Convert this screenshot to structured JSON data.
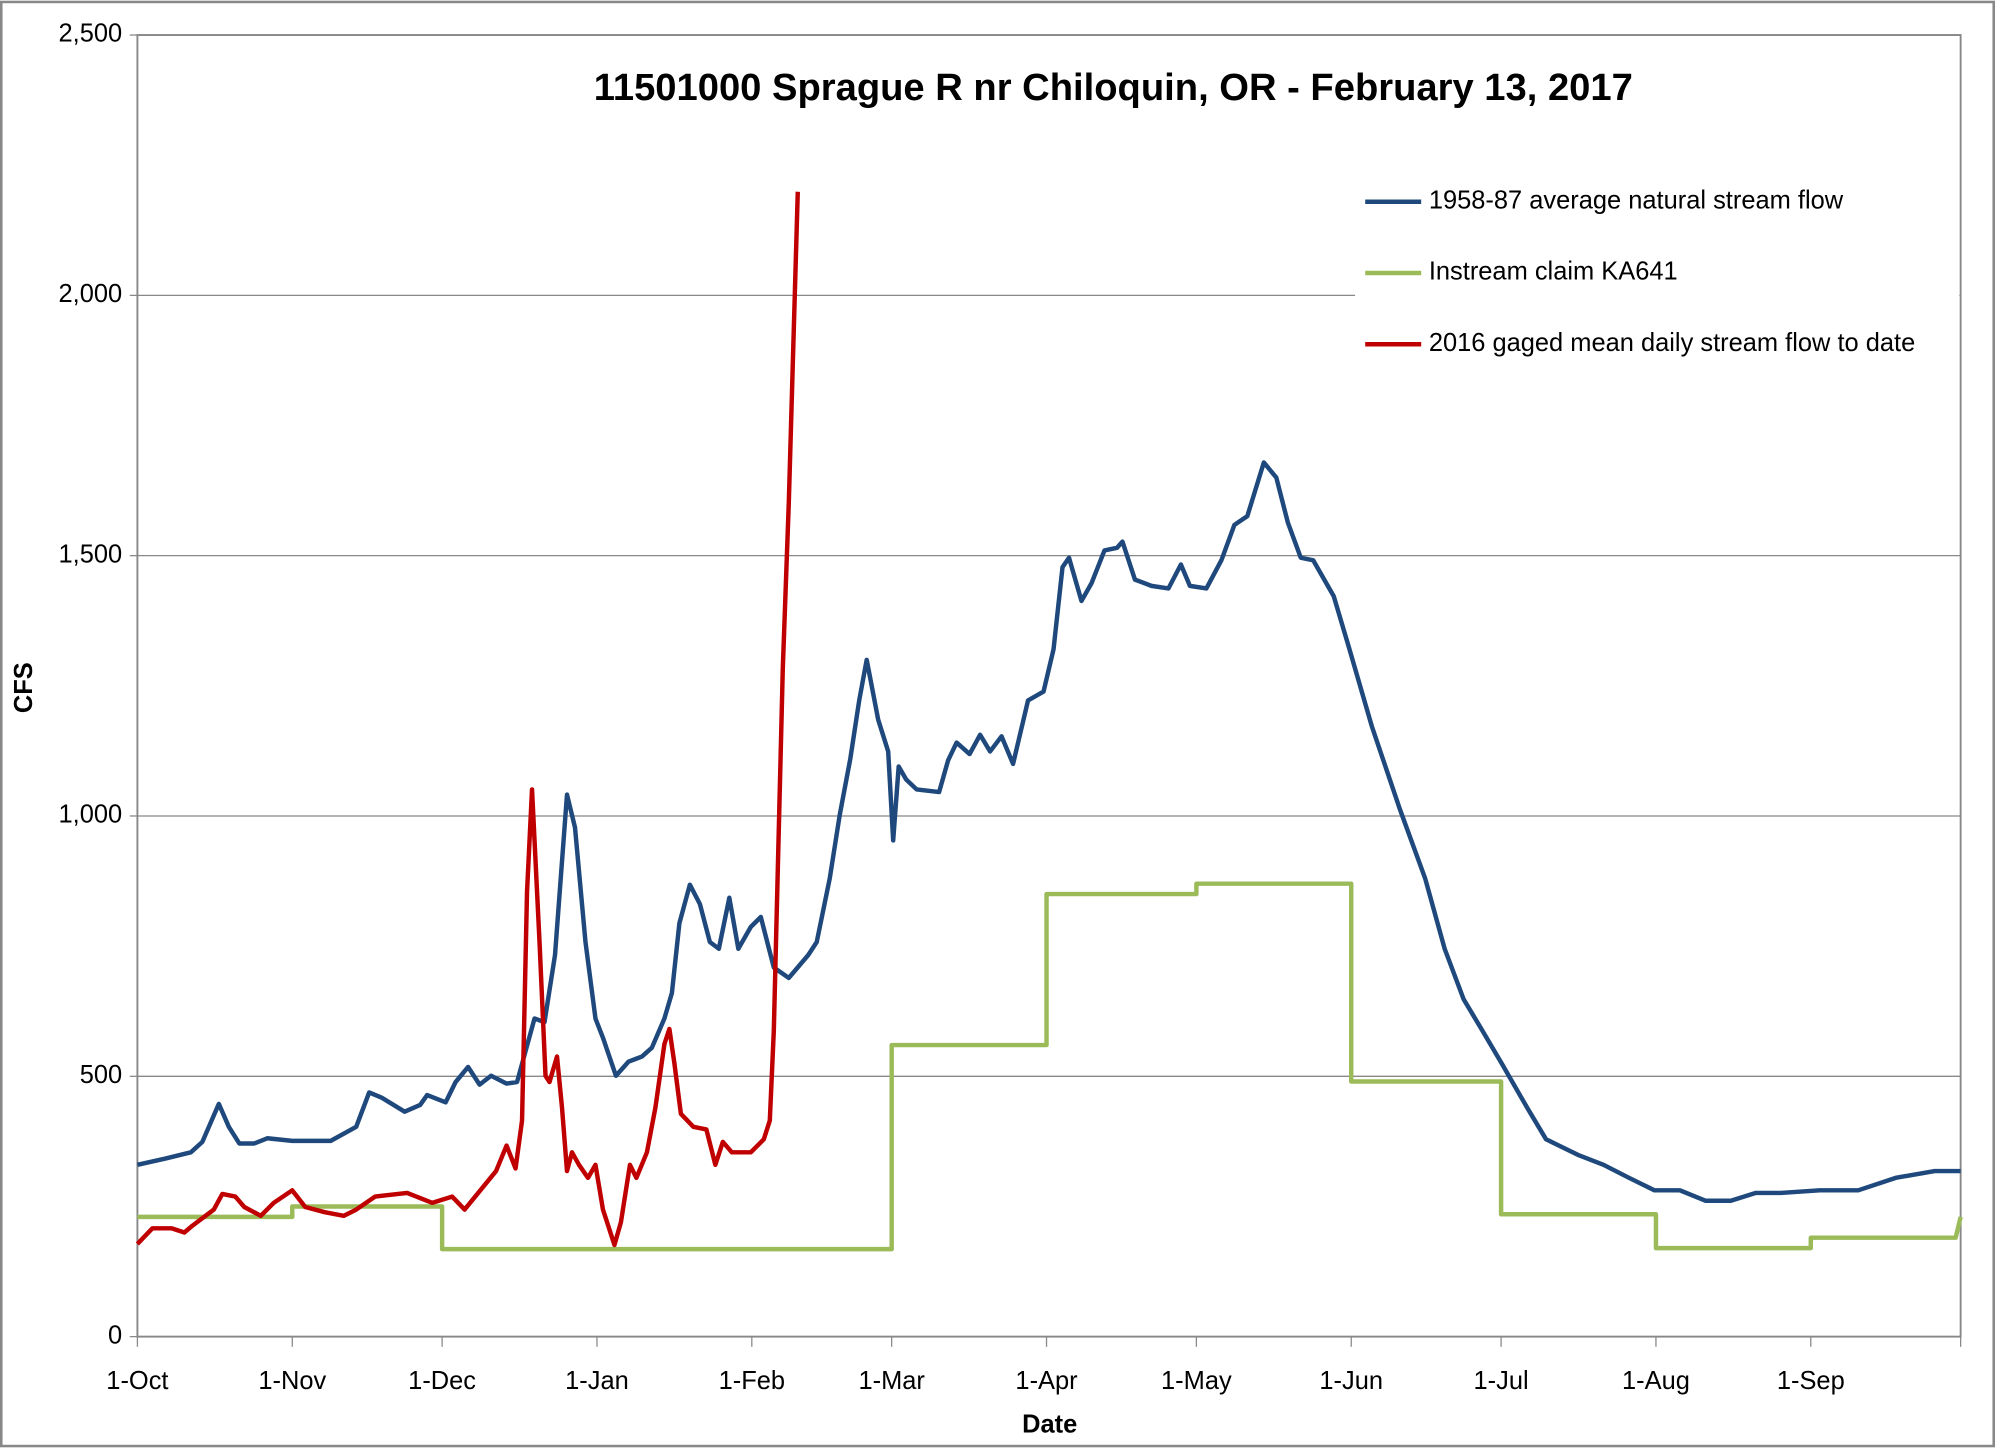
{
  "chart_data": {
    "type": "line",
    "title": "11501000 Sprague R nr Chiloquin, OR   -  February 13, 2017",
    "x_label": "Date",
    "y_label": "CFS",
    "xlim": [
      0,
      365
    ],
    "ylim": [
      0,
      2500
    ],
    "xticks": [
      {
        "value": 0,
        "label": "1-Oct"
      },
      {
        "value": 31,
        "label": "1-Nov"
      },
      {
        "value": 61,
        "label": "1-Dec"
      },
      {
        "value": 92,
        "label": "1-Jan"
      },
      {
        "value": 123,
        "label": "1-Feb"
      },
      {
        "value": 151,
        "label": "1-Mar"
      },
      {
        "value": 182,
        "label": "1-Apr"
      },
      {
        "value": 212,
        "label": "1-May"
      },
      {
        "value": 243,
        "label": "1-Jun"
      },
      {
        "value": 273,
        "label": "1-Jul"
      },
      {
        "value": 304,
        "label": "1-Aug"
      },
      {
        "value": 335,
        "label": "1-Sep"
      }
    ],
    "yticks": [
      0,
      {
        "value": 500,
        "label": "500"
      },
      {
        "value": 1000,
        "label": "1,000"
      },
      {
        "value": 1500,
        "label": "1,500"
      },
      {
        "value": 2000,
        "label": "2,000"
      },
      {
        "value": 2500,
        "label": "2,500"
      }
    ],
    "grid": true,
    "legend": "upper right",
    "series": [
      {
        "name": "1958-87 average natural stream flow",
        "color": "#1f497d",
        "x": [
          0,
          5.6,
          10.7,
          13,
          16.3,
          18.3,
          20.4,
          23.4,
          26,
          31,
          38.7,
          43.8,
          46.4,
          48.9,
          53.5,
          56.6,
          58,
          61.7,
          63.7,
          66.2,
          68.5,
          70.8,
          73.9,
          76,
          79.5,
          81.5,
          83.6,
          86,
          87.6,
          89.7,
          91.7,
          93.2,
          95.8,
          98.3,
          101,
          103,
          105.5,
          107,
          108.5,
          110.6,
          112.6,
          114.6,
          116.4,
          118.5,
          120.3,
          122.8,
          124.8,
          127.4,
          130.4,
          134.3,
          136,
          138.6,
          140.6,
          142.7,
          144.5,
          146,
          148.3,
          150.3,
          151.3,
          152.4,
          153.9,
          156,
          160.5,
          162.3,
          164,
          166.6,
          168.7,
          170.7,
          173,
          175.3,
          178.3,
          181.4,
          183.4,
          185.2,
          186.5,
          189,
          191,
          193.6,
          196.1,
          197.2,
          199.7,
          203,
          206.4,
          208.9,
          210.7,
          214,
          217,
          219.6,
          222.2,
          225.5,
          228,
          230.3,
          232.9,
          235.4,
          239.5,
          242.5,
          247.1,
          252.7,
          257.8,
          261.7,
          265.5,
          269.3,
          273.1,
          278.2,
          282,
          288.4,
          293.5,
          298.6,
          303.7,
          308.8,
          313.9,
          319,
          324,
          329,
          336.8,
          344.5,
          352,
          359.8,
          365
        ],
        "values": [
          330,
          342,
          354,
          374,
          447,
          403,
          371,
          371,
          381,
          376,
          376,
          403,
          469,
          459,
          432,
          445,
          464,
          450,
          489,
          518,
          484,
          501,
          486,
          489,
          611,
          604,
          733,
          1041,
          978,
          758,
          611,
          574,
          501,
          528,
          538,
          555,
          611,
          660,
          794,
          868,
          831,
          758,
          745,
          843,
          745,
          787,
          806,
          709,
          689,
          733,
          758,
          880,
          1002,
          1109,
          1222,
          1300,
          1185,
          1124,
          953,
          1095,
          1070,
          1051,
          1046,
          1107,
          1141,
          1119,
          1156,
          1124,
          1153,
          1100,
          1222,
          1239,
          1320,
          1478,
          1496,
          1413,
          1447,
          1510,
          1515,
          1527,
          1454,
          1442,
          1437,
          1483,
          1442,
          1437,
          1491,
          1559,
          1576,
          1679,
          1650,
          1564,
          1496,
          1491,
          1422,
          1325,
          1173,
          1014,
          880,
          745,
          648,
          587,
          525,
          440,
          379,
          349,
          330,
          305,
          281,
          281,
          261,
          261,
          276,
          276,
          281,
          281,
          305,
          318,
          318
        ]
      },
      {
        "name": "Instream claim KA641",
        "color": "#9bbb59",
        "x": [
          0,
          31,
          31,
          61,
          61,
          151,
          151,
          182,
          182,
          212,
          212,
          243,
          243,
          273,
          273,
          304,
          304,
          335,
          335,
          364,
          365
        ],
        "values": [
          230,
          230,
          250,
          250,
          168,
          168,
          560,
          560,
          850,
          850,
          870,
          870,
          490,
          490,
          235,
          235,
          170,
          170,
          190,
          190,
          230
        ]
      },
      {
        "name": "2016 gaged mean daily stream flow to date",
        "color": "#c00000",
        "x": [
          0,
          3,
          6.9,
          9.4,
          11,
          15.3,
          17,
          19.6,
          21.4,
          24.7,
          27.3,
          31,
          33.6,
          37.5,
          41.3,
          43.8,
          47.6,
          54,
          59,
          63,
          65.5,
          71.8,
          73.9,
          75.7,
          77,
          78,
          79,
          80.5,
          81.7,
          82.5,
          84,
          85,
          86,
          87,
          88.4,
          90.2,
          91.7,
          93.2,
          95.5,
          96.8,
          98.6,
          99.9,
          102,
          103.7,
          105.5,
          106.5,
          107.5,
          108.8,
          111.3,
          113.9,
          115.7,
          117.2,
          119,
          122.8,
          125.4,
          126.6,
          127.4,
          129.2,
          130.4,
          132.2
        ],
        "values": [
          178,
          208,
          208,
          200,
          213,
          244,
          274,
          269,
          249,
          232,
          257,
          281,
          249,
          239,
          232,
          244,
          269,
          276,
          257,
          269,
          244,
          318,
          367,
          323,
          415,
          855,
          1051,
          758,
          501,
          489,
          538,
          440,
          318,
          354,
          330,
          305,
          330,
          244,
          176,
          220,
          330,
          305,
          354,
          440,
          562,
          591,
          525,
          428,
          403,
          398,
          330,
          374,
          354,
          354,
          379,
          415,
          587,
          1283,
          1601,
          2199
        ]
      }
    ]
  }
}
